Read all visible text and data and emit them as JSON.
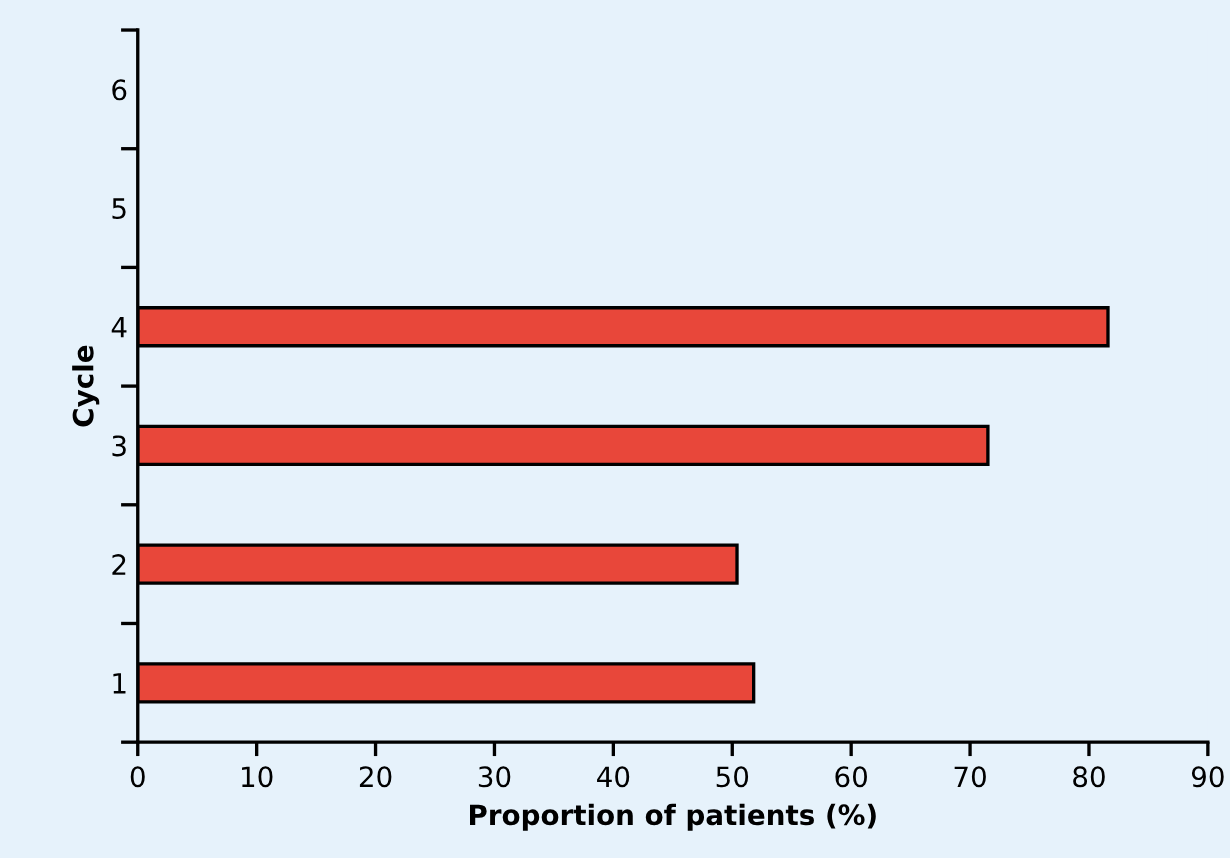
{
  "chart_data": {
    "type": "bar",
    "orientation": "horizontal",
    "xlabel": "Proportion of patients (%)",
    "ylabel": "Cycle",
    "categories": [
      "6",
      "5",
      "4",
      "3",
      "2",
      "1"
    ],
    "values": [
      null,
      null,
      81.6,
      71.5,
      50.4,
      51.8
    ],
    "color": "#e8473a",
    "xlim": [
      0,
      90
    ],
    "xticks": [
      0,
      10,
      20,
      30,
      40,
      50,
      60,
      70,
      80,
      90
    ],
    "grid": false,
    "legend": false
  }
}
